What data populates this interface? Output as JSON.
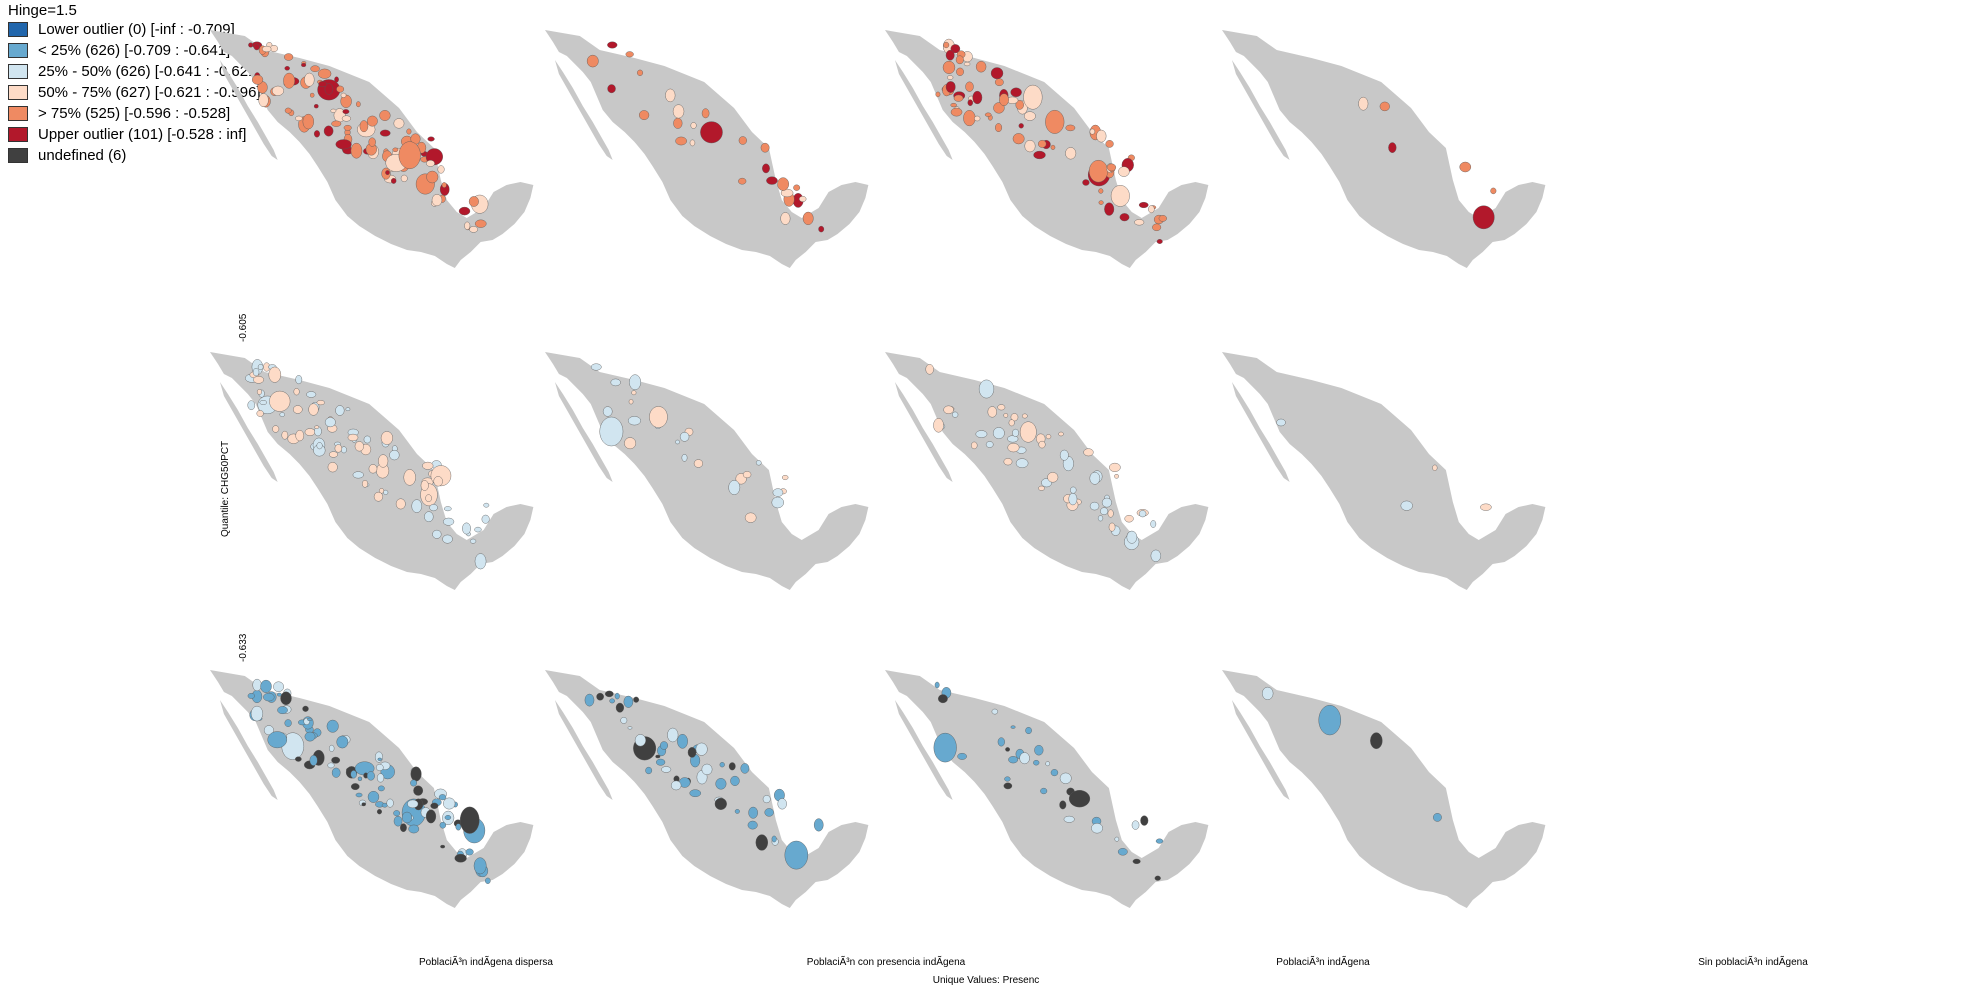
{
  "legend": {
    "title": "Hinge=1.5",
    "items": [
      {
        "label": "Lower outlier (0)  [-inf : -0.709]",
        "color": "#2166ac"
      },
      {
        "label": "< 25% (626)  [-0.709 : -0.641]",
        "color": "#67a9cf"
      },
      {
        "label": "25% - 50% (626)  [-0.641 : -0.621]",
        "color": "#d1e5f0"
      },
      {
        "label": "50% - 75% (627)  [-0.621 : -0.596]",
        "color": "#fddbc7"
      },
      {
        "label": "> 75% (525)  [-0.596 : -0.528]",
        "color": "#ef8a62"
      },
      {
        "label": "Upper outlier (101)  [-0.528 : inf]",
        "color": "#b2182b"
      },
      {
        "label": "undefined (6)",
        "color": "#404040"
      }
    ]
  },
  "y_axis": {
    "title": "Quantile: CHG50PCT",
    "breaks": [
      "-0.605",
      "-0.633"
    ]
  },
  "x_axis": {
    "title": "Unique Values: Presenc",
    "categories": [
      "PoblaciÃ³n indÃ­gena dispersa",
      "PoblaciÃ³n con presencia indÃ­gena",
      "PoblaciÃ³n indÃ­gena",
      "Sin poblaciÃ³n indÃ­gena"
    ]
  },
  "colors": {
    "land": "#c8c8c8",
    "border": "#555555"
  },
  "panels": {
    "rows": 3,
    "cols": 4,
    "row_palettes": [
      [
        "#b2182b",
        "#ef8a62",
        "#fddbc7",
        "#ef8a62"
      ],
      [
        "#d1e5f0",
        "#fddbc7",
        "#d1e5f0",
        "#fddbc7"
      ],
      [
        "#67a9cf",
        "#d1e5f0",
        "#67a9cf",
        "#404040"
      ]
    ],
    "density": [
      [
        1.0,
        0.25,
        0.75,
        0.05
      ],
      [
        0.85,
        0.25,
        0.55,
        0.04
      ],
      [
        1.0,
        0.45,
        0.35,
        0.04
      ]
    ]
  }
}
